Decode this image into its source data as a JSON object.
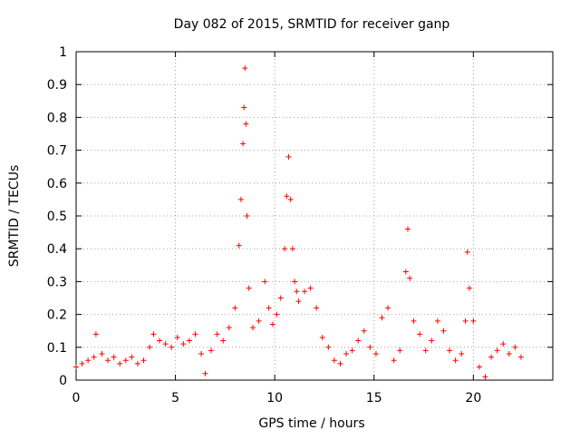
{
  "chart_data": {
    "type": "scatter",
    "title": "Day 082 of 2015, SRMTID for receiver ganp",
    "xlabel": "GPS time / hours",
    "ylabel": "SRMTID / TECUs",
    "xlim": [
      0,
      24
    ],
    "ylim": [
      0,
      1
    ],
    "xticks": [
      0,
      5,
      10,
      15,
      20
    ],
    "xtick_labels": [
      "0",
      "5",
      "10",
      "15",
      "20"
    ],
    "yticks": [
      0,
      0.1,
      0.2,
      0.3,
      0.4,
      0.5,
      0.6,
      0.7,
      0.8,
      0.9,
      1
    ],
    "ytick_labels": [
      "0",
      "0.1",
      "0.2",
      "0.3",
      "0.4",
      "0.5",
      "0.6",
      "0.7",
      "0.8",
      "0.9",
      "1"
    ],
    "grid": true,
    "legend": "none",
    "marker": "plus",
    "series": [
      {
        "name": "SRMTID",
        "color": "#ff0000",
        "x": [
          0.0,
          0.3,
          0.6,
          0.9,
          1.0,
          1.3,
          1.6,
          1.9,
          2.2,
          2.5,
          2.8,
          3.1,
          3.4,
          3.7,
          3.9,
          4.2,
          4.5,
          4.8,
          5.1,
          5.4,
          5.7,
          6.0,
          6.3,
          6.5,
          6.8,
          7.1,
          7.4,
          7.7,
          8.0,
          8.2,
          8.3,
          8.4,
          8.45,
          8.5,
          8.55,
          8.6,
          8.7,
          8.9,
          9.2,
          9.5,
          9.7,
          9.9,
          10.1,
          10.3,
          10.5,
          10.6,
          10.7,
          10.8,
          10.9,
          11.0,
          11.1,
          11.2,
          11.5,
          11.8,
          12.1,
          12.4,
          12.7,
          13.0,
          13.3,
          13.6,
          13.9,
          14.2,
          14.5,
          14.8,
          15.1,
          15.4,
          15.7,
          16.0,
          16.3,
          16.6,
          16.7,
          16.8,
          17.0,
          17.3,
          17.6,
          17.9,
          18.2,
          18.5,
          18.8,
          19.1,
          19.4,
          19.6,
          19.7,
          19.8,
          20.0,
          20.3,
          20.6,
          20.9,
          21.2,
          21.5,
          21.8,
          22.1,
          22.4
        ],
        "y": [
          0.04,
          0.05,
          0.06,
          0.07,
          0.14,
          0.08,
          0.06,
          0.07,
          0.05,
          0.06,
          0.07,
          0.05,
          0.06,
          0.1,
          0.14,
          0.12,
          0.11,
          0.1,
          0.13,
          0.11,
          0.12,
          0.14,
          0.08,
          0.02,
          0.09,
          0.14,
          0.12,
          0.16,
          0.22,
          0.41,
          0.55,
          0.72,
          0.83,
          0.95,
          0.78,
          0.5,
          0.28,
          0.16,
          0.18,
          0.3,
          0.22,
          0.17,
          0.2,
          0.25,
          0.4,
          0.56,
          0.68,
          0.55,
          0.4,
          0.3,
          0.27,
          0.24,
          0.27,
          0.28,
          0.22,
          0.13,
          0.1,
          0.06,
          0.05,
          0.08,
          0.09,
          0.12,
          0.15,
          0.1,
          0.08,
          0.19,
          0.22,
          0.06,
          0.09,
          0.33,
          0.46,
          0.31,
          0.18,
          0.14,
          0.09,
          0.12,
          0.18,
          0.15,
          0.09,
          0.06,
          0.08,
          0.18,
          0.39,
          0.28,
          0.18,
          0.04,
          0.01,
          0.07,
          0.09,
          0.11,
          0.08,
          0.1,
          0.07
        ]
      }
    ]
  }
}
